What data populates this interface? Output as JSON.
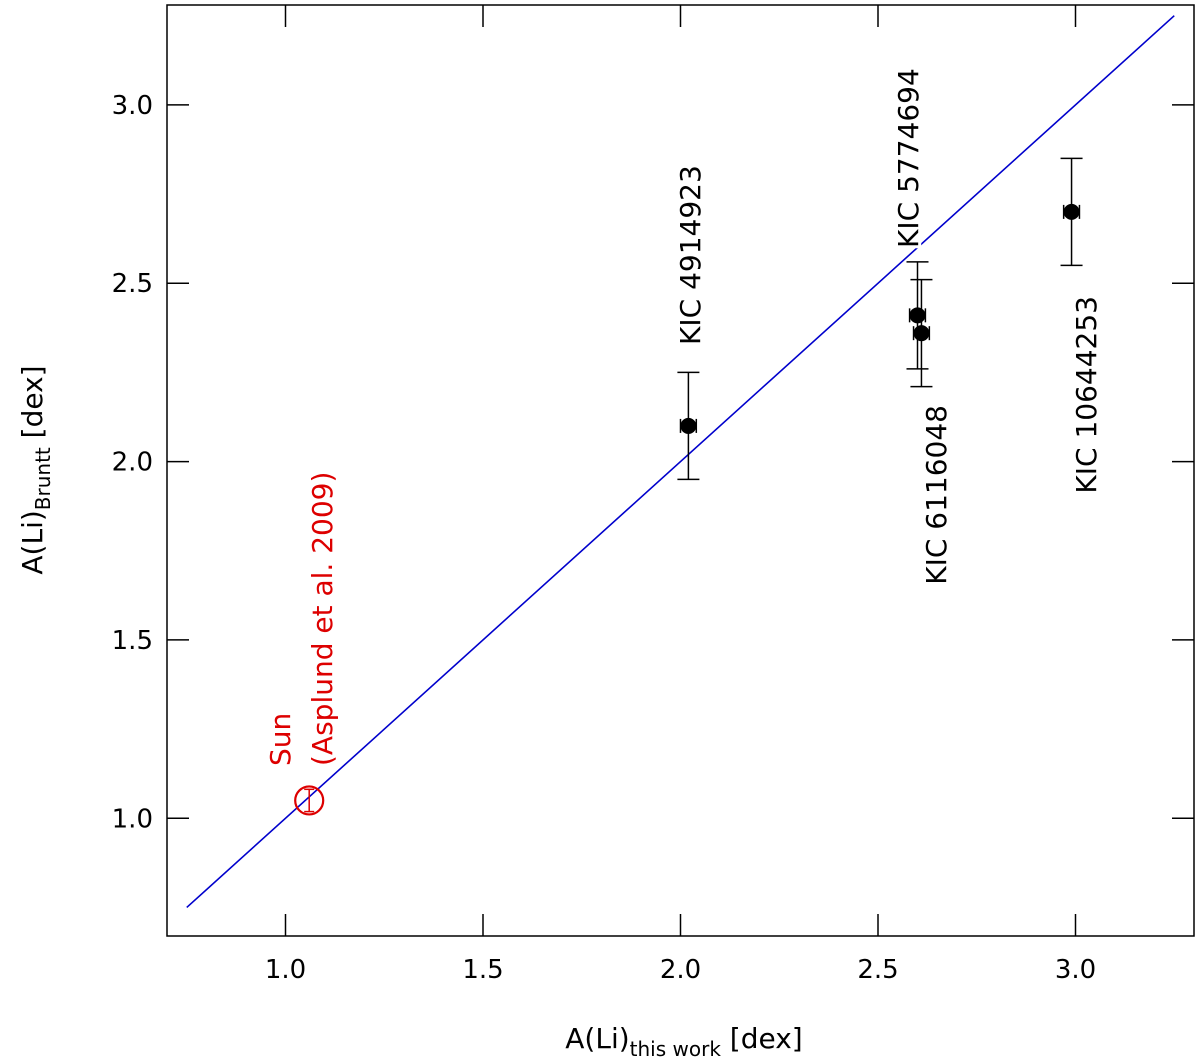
{
  "chart_data": {
    "type": "scatter",
    "title": "",
    "xlabel": {
      "main": "A(Li)",
      "sub": "this work",
      "unit": " [dex]"
    },
    "ylabel": {
      "main": "A(Li)",
      "sub": "Bruntt",
      "unit": " [dex]"
    },
    "xlim": [
      0.7,
      3.3
    ],
    "ylim": [
      0.67,
      3.28
    ],
    "xticks": [
      1.0,
      1.5,
      2.0,
      2.5,
      3.0
    ],
    "xtick_labels": [
      "1.0",
      "1.5",
      "2.0",
      "2.5",
      "3.0"
    ],
    "yticks": [
      1.0,
      1.5,
      2.0,
      2.5,
      3.0
    ],
    "ytick_labels": [
      "1.0",
      "1.5",
      "2.0",
      "2.5",
      "3.0"
    ],
    "grid": false,
    "legend": "none",
    "identity_line": {
      "from": [
        0.75,
        0.75
      ],
      "to": [
        3.25,
        3.25
      ],
      "color": "#0000cc"
    },
    "points": [
      {
        "x": 2.02,
        "y": 2.1,
        "yerr": 0.15,
        "xerr": 0.02,
        "label": "KIC 4914923"
      },
      {
        "x": 2.6,
        "y": 2.41,
        "yerr": 0.15,
        "xerr": 0.02,
        "label": "KIC 5774694"
      },
      {
        "x": 2.61,
        "y": 2.36,
        "yerr": 0.15,
        "xerr": 0.02,
        "label": "KIC 6116048"
      },
      {
        "x": 2.99,
        "y": 2.7,
        "yerr": 0.15,
        "xerr": 0.02,
        "label": "KIC 10644253"
      }
    ],
    "sun": {
      "x": 1.06,
      "y": 1.05,
      "yerr": 0.02,
      "xerr": 0.02,
      "label_line1": "Sun",
      "label_line2": "(Asplund et al. 2009)",
      "color": "#dd0000"
    },
    "colors": {
      "points": "#000000",
      "line": "#0000cc",
      "sun": "#dd0000"
    }
  }
}
